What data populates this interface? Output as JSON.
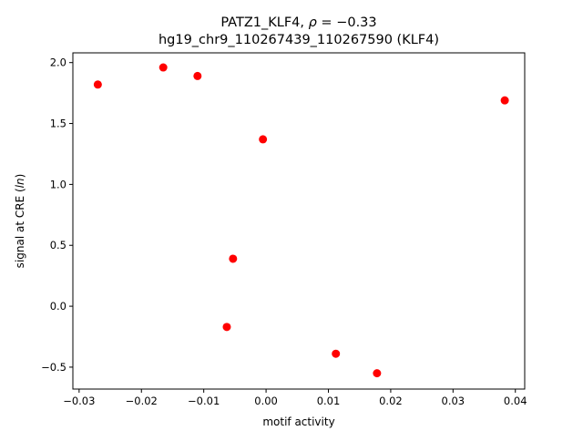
{
  "chart_data": {
    "type": "scatter",
    "title_line1_prefix": "PATZ1_KLF4, ",
    "title_rho": "ρ",
    "title_line1_suffix": " = −0.33",
    "title_line2": "hg19_chr9_110267439_110267590 (KLF4)",
    "xlabel": "motif activity",
    "ylabel_prefix": "signal at CRE (",
    "ylabel_italic": "ln",
    "ylabel_suffix": ")",
    "xlim": [
      -0.031,
      0.0415
    ],
    "ylim": [
      -0.68,
      2.08
    ],
    "xticks": [
      -0.03,
      -0.02,
      -0.01,
      0.0,
      0.01,
      0.02,
      0.03,
      0.04
    ],
    "xtick_labels": [
      "−0.03",
      "−0.02",
      "−0.01",
      "0.00",
      "0.01",
      "0.02",
      "0.03",
      "0.04"
    ],
    "yticks": [
      -0.5,
      0.0,
      0.5,
      1.0,
      1.5,
      2.0
    ],
    "ytick_labels": [
      "−0.5",
      "0.0",
      "0.5",
      "1.0",
      "1.5",
      "2.0"
    ],
    "grid": false,
    "marker_color": "#ff0000",
    "points": [
      {
        "x": -0.027,
        "y": 1.82
      },
      {
        "x": -0.0165,
        "y": 1.96
      },
      {
        "x": -0.011,
        "y": 1.89
      },
      {
        "x": -0.0005,
        "y": 1.37
      },
      {
        "x": -0.0053,
        "y": 0.39
      },
      {
        "x": -0.0063,
        "y": -0.17
      },
      {
        "x": 0.0112,
        "y": -0.39
      },
      {
        "x": 0.0178,
        "y": -0.55
      },
      {
        "x": 0.0383,
        "y": 1.69
      }
    ]
  }
}
